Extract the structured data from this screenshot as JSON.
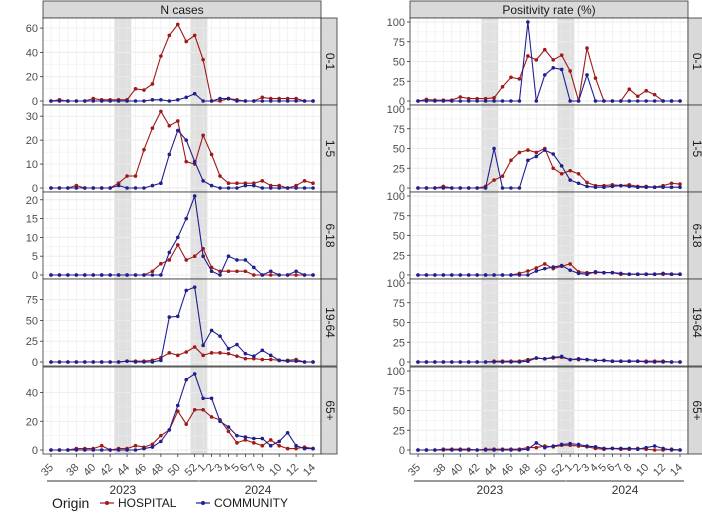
{
  "chart_data": {
    "type": "line",
    "weeks": [
      "35",
      "36",
      "37",
      "38",
      "39",
      "40",
      "41",
      "42",
      "43",
      "44",
      "45",
      "46",
      "47",
      "48",
      "49",
      "50",
      "51",
      "52",
      "1",
      "2",
      "3",
      "4",
      "5",
      "6",
      "7",
      "8",
      "9",
      "10",
      "11",
      "12",
      "13",
      "14"
    ],
    "x_tick_labels": [
      "35",
      "38",
      "40",
      "42",
      "44",
      "46",
      "48",
      "50",
      "52",
      "1",
      "2",
      "3",
      "4",
      "5",
      "6",
      "7",
      "8",
      "10",
      "12",
      "14"
    ],
    "x_tick_weeks": [
      "35",
      "38",
      "40",
      "42",
      "44",
      "46",
      "48",
      "50",
      "52",
      "1",
      "2",
      "3",
      "4",
      "5",
      "6",
      "7",
      "8",
      "10",
      "12",
      "14"
    ],
    "years": [
      {
        "label": "2023",
        "from": "35",
        "to": "52"
      },
      {
        "label": "2024",
        "from": "1",
        "to": "14"
      }
    ],
    "shaded_weeks": [
      [
        "43",
        "44"
      ],
      [
        "52",
        "1"
      ]
    ],
    "columns": [
      {
        "title": "N cases",
        "key": "n"
      },
      {
        "title": "Positivity rate (%)",
        "key": "rate"
      }
    ],
    "rows": [
      {
        "label": "0-1",
        "n_ylim": [
          0,
          65
        ],
        "n_ticks": [
          0,
          20,
          40,
          60
        ],
        "rate_ylim": [
          0,
          100
        ],
        "rate_ticks": [
          0,
          25,
          50,
          75,
          100
        ]
      },
      {
        "label": "1-5",
        "n_ylim": [
          0,
          33
        ],
        "n_ticks": [
          0,
          10,
          20,
          30
        ],
        "rate_ylim": [
          0,
          100
        ],
        "rate_ticks": [
          0,
          25,
          50,
          75,
          100
        ]
      },
      {
        "label": "6-18",
        "n_ylim": [
          0,
          21
        ],
        "n_ticks": [
          0,
          5,
          10,
          15,
          20
        ],
        "rate_ylim": [
          0,
          100
        ],
        "rate_ticks": [
          0,
          25,
          50,
          75,
          100
        ]
      },
      {
        "label": "19-64",
        "n_ylim": [
          0,
          95
        ],
        "n_ticks": [
          0,
          25,
          50,
          75
        ],
        "rate_ylim": [
          0,
          100
        ],
        "rate_ticks": [
          0,
          25,
          50,
          75,
          100
        ]
      },
      {
        "label": "65+",
        "n_ylim": [
          0,
          55
        ],
        "n_ticks": [
          0,
          20,
          40
        ],
        "rate_ylim": [
          0,
          100
        ],
        "rate_ticks": [
          0,
          25,
          50,
          75,
          100
        ]
      }
    ],
    "series": [
      {
        "name": "HOSPITAL",
        "color": "#a01818",
        "n": {
          "0-1": [
            0,
            1,
            0,
            0,
            0,
            2,
            1,
            1,
            1,
            1,
            10,
            9,
            14,
            37,
            54,
            63,
            49,
            54,
            34,
            0,
            0,
            2,
            1,
            0,
            0,
            3,
            2,
            2,
            2,
            2,
            0,
            0
          ],
          "1-5": [
            0,
            0,
            0,
            1,
            0,
            0,
            0,
            0,
            2,
            5,
            5,
            16,
            25,
            32,
            26,
            28,
            11,
            10,
            22,
            14,
            5,
            2,
            2,
            2,
            2,
            3,
            1,
            1,
            0,
            1,
            3,
            2
          ],
          "6-18": [
            0,
            0,
            0,
            0,
            0,
            0,
            0,
            0,
            0,
            0,
            0,
            0,
            1,
            3,
            4,
            8,
            4,
            5,
            7,
            2,
            1,
            1,
            1,
            1,
            0,
            0,
            0,
            0,
            0,
            0,
            0,
            0
          ],
          "19-64": [
            0,
            0,
            0,
            0,
            0,
            0,
            0,
            0,
            0,
            1,
            1,
            1,
            2,
            5,
            11,
            8,
            12,
            18,
            8,
            11,
            11,
            10,
            7,
            4,
            4,
            3,
            3,
            2,
            2,
            3,
            0,
            0
          ],
          "65+": [
            0,
            0,
            0,
            1,
            1,
            1,
            3,
            0,
            1,
            1,
            3,
            2,
            4,
            10,
            14,
            27,
            18,
            28,
            28,
            23,
            21,
            13,
            5,
            7,
            5,
            3,
            7,
            3,
            1,
            1,
            2,
            1
          ]
        },
        "rate": {
          "0-1": [
            0,
            2,
            1,
            1,
            1,
            5,
            3,
            3,
            3,
            4,
            18,
            30,
            28,
            57,
            52,
            65,
            52,
            58,
            38,
            0,
            67,
            29,
            0,
            0,
            0,
            15,
            6,
            13,
            8,
            0,
            0,
            0
          ],
          "1-5": [
            0,
            0,
            0,
            2,
            0,
            0,
            0,
            0,
            2,
            10,
            15,
            35,
            45,
            48,
            45,
            50,
            25,
            18,
            22,
            18,
            7,
            3,
            3,
            4,
            3,
            4,
            2,
            2,
            1,
            3,
            6,
            5
          ],
          "6-18": [
            0,
            0,
            0,
            0,
            0,
            0,
            0,
            0,
            0,
            0,
            0,
            0,
            2,
            5,
            9,
            14,
            8,
            11,
            14,
            4,
            3,
            3,
            3,
            3,
            1,
            1,
            1,
            1,
            1,
            1,
            1,
            1
          ],
          "19-64": [
            0,
            0,
            0,
            0,
            0,
            0,
            0,
            0,
            0,
            1,
            1,
            1,
            1,
            3,
            5,
            4,
            5,
            6,
            3,
            3,
            3,
            2,
            2,
            1,
            1,
            1,
            1,
            1,
            1,
            1,
            0,
            0
          ],
          "65+": [
            0,
            0,
            0,
            1,
            1,
            1,
            1,
            0,
            1,
            1,
            1,
            1,
            1,
            3,
            3,
            5,
            4,
            6,
            6,
            5,
            4,
            2,
            1,
            2,
            1,
            1,
            2,
            1,
            0,
            0,
            1,
            0
          ]
        }
      },
      {
        "name": "COMMUNITY",
        "color": "#1f1f8f",
        "n": {
          "0-1": [
            0,
            0,
            0,
            0,
            0,
            0,
            0,
            0,
            0,
            0,
            0,
            0,
            1,
            1,
            0,
            1,
            3,
            6,
            0,
            0,
            2,
            2,
            0,
            0,
            0,
            0,
            0,
            0,
            0,
            0,
            0,
            0
          ],
          "1-5": [
            0,
            0,
            0,
            0,
            0,
            0,
            0,
            0,
            1,
            0,
            0,
            0,
            1,
            2,
            14,
            24,
            20,
            11,
            3,
            1,
            0,
            0,
            0,
            1,
            1,
            0,
            0,
            0,
            0,
            0,
            0,
            0
          ],
          "6-18": [
            0,
            0,
            0,
            0,
            0,
            0,
            0,
            0,
            0,
            0,
            0,
            0,
            0,
            0,
            6,
            10,
            15,
            21,
            5,
            1,
            0,
            5,
            4,
            4,
            2,
            0,
            1,
            0,
            0,
            1,
            0,
            0
          ],
          "19-64": [
            0,
            0,
            0,
            0,
            0,
            0,
            0,
            0,
            0,
            1,
            0,
            0,
            0,
            2,
            54,
            55,
            86,
            90,
            20,
            38,
            31,
            16,
            21,
            10,
            7,
            14,
            8,
            2,
            1,
            1,
            0,
            0
          ],
          "65+": [
            0,
            0,
            0,
            0,
            0,
            0,
            0,
            0,
            0,
            0,
            0,
            1,
            2,
            6,
            14,
            31,
            49,
            53,
            36,
            36,
            20,
            16,
            10,
            9,
            8,
            8,
            3,
            6,
            12,
            3,
            1,
            1
          ]
        },
        "rate": {
          "0-1": [
            0,
            0,
            0,
            0,
            0,
            0,
            0,
            0,
            0,
            0,
            0,
            0,
            0,
            100,
            0,
            33,
            42,
            40,
            0,
            0,
            33,
            0,
            0,
            0,
            0,
            0,
            0,
            0,
            0,
            0,
            0,
            0
          ],
          "1-5": [
            0,
            0,
            0,
            0,
            0,
            0,
            0,
            0,
            0,
            50,
            0,
            0,
            0,
            35,
            40,
            48,
            43,
            28,
            10,
            6,
            2,
            1,
            1,
            2,
            3,
            2,
            1,
            1,
            1,
            1,
            1,
            1
          ],
          "6-18": [
            0,
            0,
            0,
            0,
            0,
            0,
            0,
            0,
            0,
            0,
            0,
            0,
            0,
            0,
            5,
            8,
            10,
            12,
            6,
            2,
            1,
            4,
            3,
            3,
            2,
            1,
            1,
            1,
            1,
            2,
            1,
            1
          ],
          "19-64": [
            0,
            0,
            0,
            0,
            0,
            0,
            0,
            0,
            0,
            0,
            0,
            0,
            0,
            1,
            5,
            4,
            6,
            7,
            3,
            4,
            3,
            2,
            2,
            1,
            1,
            1,
            1,
            0,
            0,
            0,
            0,
            0
          ],
          "65+": [
            0,
            0,
            0,
            0,
            0,
            0,
            0,
            0,
            0,
            0,
            0,
            0,
            0,
            1,
            9,
            3,
            5,
            7,
            8,
            7,
            5,
            4,
            2,
            2,
            2,
            2,
            1,
            3,
            5,
            2,
            0,
            0
          ]
        }
      }
    ],
    "legend": {
      "title": "Origin",
      "items": [
        "HOSPITAL",
        "COMMUNITY"
      ]
    }
  }
}
